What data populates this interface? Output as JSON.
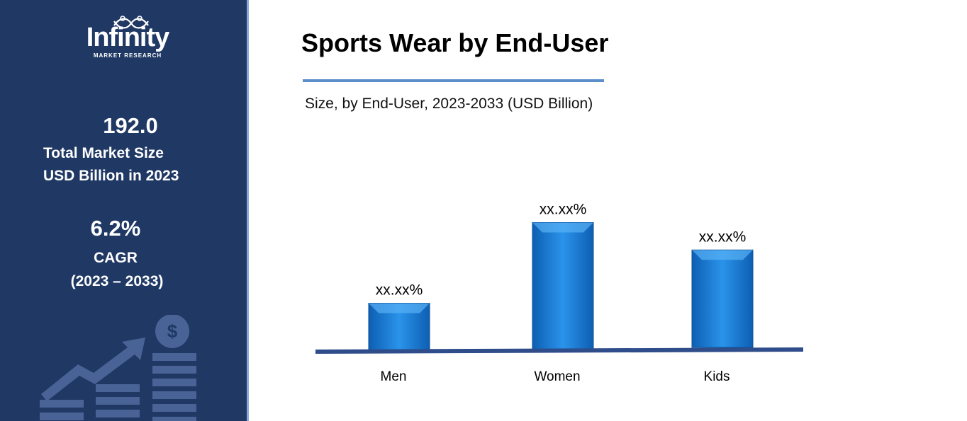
{
  "sidebar": {
    "logo_word": "Infinity",
    "logo_sub": "MARKET RESEARCH",
    "market_size_value": "192.0",
    "market_size_label_1": "Total Market Size",
    "market_size_label_2": "USD Billion in 2023",
    "cagr_value": "6.2%",
    "cagr_label": "CAGR",
    "cagr_period": "(2023 – 2033)",
    "decoration_icon": "dollar-growth-icon"
  },
  "colors": {
    "sidebar_bg": "#1f3864",
    "bar": "#1f7fd6",
    "baseline": "#2f4d8a",
    "title_rule": "#5b8fc9"
  },
  "chart_data": {
    "type": "bar",
    "title": "Sports Wear by End-User",
    "subtitle": "Size, by End-User, 2023-2033 (USD Billion)",
    "categories": [
      "Men",
      "Women",
      "Kids"
    ],
    "values": [
      70,
      190,
      145
    ],
    "data_labels": [
      "xx.xx%",
      "xx.xx%",
      "xx.xx%"
    ],
    "xlabel": "",
    "ylabel": "",
    "ylim": [
      0,
      200
    ],
    "grid": false,
    "legend": "none"
  }
}
